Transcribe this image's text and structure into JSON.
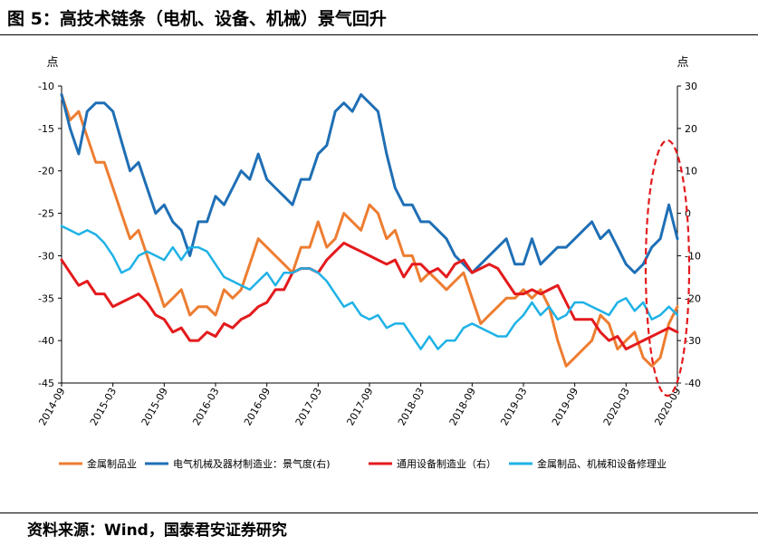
{
  "figure_title": "图 5：高技术链条（电机、设备、机械）景气回升",
  "source": "资料来源：Wind，国泰君安证券研究",
  "chart_data": {
    "type": "line",
    "y_left_unit": "点",
    "y_right_unit": "点",
    "y_left": {
      "range": [
        -45,
        -10
      ],
      "ticks": [
        -10,
        -15,
        -20,
        -25,
        -30,
        -35,
        -40,
        -45
      ]
    },
    "y_right": {
      "range": [
        -40,
        30
      ],
      "ticks": [
        30,
        20,
        10,
        0,
        -10,
        -20,
        -30,
        -40
      ]
    },
    "x_ticks": [
      "2014-09",
      "2015-03",
      "2015-09",
      "2016-03",
      "2016-09",
      "2017-03",
      "2017-09",
      "2018-03",
      "2018-09",
      "2019-03",
      "2019-09",
      "2020-03",
      "2020-09"
    ],
    "x_range": [
      0,
      72
    ],
    "grid": false,
    "legend_position": "bottom",
    "annotation": "red dashed ellipse highlighting the most recent months (2020-06 to 2020-09)",
    "series": [
      {
        "name": "金属制品业",
        "axis": "left",
        "color": "#ED7D31",
        "x": [
          0,
          1,
          2,
          3,
          4,
          5,
          6,
          7,
          8,
          9,
          10,
          11,
          12,
          13,
          14,
          15,
          16,
          17,
          18,
          19,
          20,
          21,
          22,
          23,
          24,
          25,
          26,
          27,
          28,
          29,
          30,
          31,
          32,
          33,
          34,
          35,
          36,
          37,
          38,
          39,
          40,
          41,
          42,
          43,
          44,
          45,
          46,
          47,
          48,
          49,
          50,
          51,
          52,
          53,
          54,
          55,
          56,
          57,
          58,
          59,
          60,
          61,
          62,
          63,
          64,
          65,
          66,
          67,
          68,
          69,
          70,
          71,
          72
        ],
        "values": [
          -11,
          -14,
          -13,
          -16,
          -19,
          -19,
          -22,
          -25,
          -28,
          -27,
          -30,
          -33,
          -36,
          -35,
          -34,
          -37,
          -36,
          -36,
          -37,
          -34,
          -35,
          -34,
          -31,
          -28,
          -29,
          -30,
          -31,
          -32,
          -29,
          -29,
          -26,
          -29,
          -28,
          -25,
          -26,
          -27,
          -24,
          -25,
          -28,
          -27,
          -30,
          -30,
          -33,
          -32,
          -33,
          -34,
          -33,
          -32,
          -35,
          -38,
          -37,
          -36,
          -35,
          -35,
          -34,
          -35,
          -34,
          -36,
          -40,
          -43,
          -42,
          -41,
          -40,
          -37,
          -38,
          -41,
          -40,
          -39,
          -42,
          -43,
          -42,
          -38,
          -36
        ]
      },
      {
        "name": "电气机械及器材制造业：景气度(右)",
        "axis": "right",
        "color": "#1F6FB5",
        "x": [
          0,
          1,
          2,
          3,
          4,
          5,
          6,
          7,
          8,
          9,
          10,
          11,
          12,
          13,
          14,
          15,
          16,
          17,
          18,
          19,
          20,
          21,
          22,
          23,
          24,
          25,
          26,
          27,
          28,
          29,
          30,
          31,
          32,
          33,
          34,
          35,
          36,
          37,
          38,
          39,
          40,
          41,
          42,
          43,
          44,
          45,
          46,
          47,
          48,
          49,
          50,
          51,
          52,
          53,
          54,
          55,
          56,
          57,
          58,
          59,
          60,
          61,
          62,
          63,
          64,
          65,
          66,
          67,
          68,
          69,
          70,
          71,
          72
        ],
        "values": [
          28,
          20,
          14,
          24,
          26,
          26,
          24,
          17,
          10,
          12,
          6,
          0,
          2,
          -2,
          -4,
          -10,
          -2,
          -2,
          4,
          2,
          6,
          10,
          8,
          14,
          8,
          6,
          4,
          2,
          8,
          8,
          14,
          16,
          24,
          26,
          24,
          28,
          26,
          24,
          14,
          6,
          2,
          2,
          -2,
          -2,
          -4,
          -6,
          -10,
          -12,
          -14,
          -12,
          -10,
          -8,
          -6,
          -12,
          -12,
          -6,
          -12,
          -10,
          -8,
          -8,
          -6,
          -4,
          -2,
          -6,
          -4,
          -8,
          -12,
          -14,
          -12,
          -8,
          -6,
          2,
          -6
        ]
      },
      {
        "name": "通用设备制造业（右）",
        "axis": "right",
        "color": "#E41A1C",
        "x": [
          0,
          1,
          2,
          3,
          4,
          5,
          6,
          7,
          8,
          9,
          10,
          11,
          12,
          13,
          14,
          15,
          16,
          17,
          18,
          19,
          20,
          21,
          22,
          23,
          24,
          25,
          26,
          27,
          28,
          29,
          30,
          31,
          32,
          33,
          34,
          35,
          36,
          37,
          38,
          39,
          40,
          41,
          42,
          43,
          44,
          45,
          46,
          47,
          48,
          49,
          50,
          51,
          52,
          53,
          54,
          55,
          56,
          57,
          58,
          59,
          60,
          61,
          62,
          63,
          64,
          65,
          66,
          67,
          68,
          69,
          70,
          71,
          72
        ],
        "values": [
          -11,
          -14,
          -17,
          -16,
          -19,
          -19,
          -22,
          -21,
          -20,
          -19,
          -21,
          -24,
          -25,
          -28,
          -27,
          -30,
          -30,
          -28,
          -29,
          -26,
          -27,
          -25,
          -24,
          -22,
          -21,
          -18,
          -18,
          -14,
          -13,
          -13,
          -14,
          -11,
          -9,
          -7,
          -8,
          -9,
          -10,
          -11,
          -12,
          -11,
          -15,
          -12,
          -12,
          -14,
          -13,
          -15,
          -12,
          -11,
          -14,
          -13,
          -12,
          -13,
          -16,
          -19,
          -19,
          -18,
          -19,
          -18,
          -17,
          -21,
          -25,
          -25,
          -25,
          -28,
          -30,
          -29,
          -32,
          -31,
          -30,
          -29,
          -28,
          -27,
          -28
        ]
      },
      {
        "name": "金属制品、机械和设备修理业",
        "axis": "left",
        "color": "#1FB2E6",
        "x": [
          0,
          1,
          2,
          3,
          4,
          5,
          6,
          7,
          8,
          9,
          10,
          11,
          12,
          13,
          14,
          15,
          16,
          17,
          18,
          19,
          20,
          21,
          22,
          23,
          24,
          25,
          26,
          27,
          28,
          29,
          30,
          31,
          32,
          33,
          34,
          35,
          36,
          37,
          38,
          39,
          40,
          41,
          42,
          43,
          44,
          45,
          46,
          47,
          48,
          49,
          50,
          51,
          52,
          53,
          54,
          55,
          56,
          57,
          58,
          59,
          60,
          61,
          62,
          63,
          64,
          65,
          66,
          67,
          68,
          69,
          70,
          71,
          72
        ],
        "values": [
          -26.5,
          -27,
          -27.5,
          -27,
          -27.5,
          -28.5,
          -30,
          -32,
          -31.5,
          -30,
          -29.5,
          -30,
          -30.5,
          -29,
          -30.5,
          -29,
          -29,
          -29.5,
          -31,
          -32.5,
          -33,
          -33.5,
          -34,
          -33,
          -32,
          -33.5,
          -32,
          -32,
          -31.5,
          -31.5,
          -32,
          -33,
          -34.5,
          -36,
          -35.5,
          -37,
          -37.5,
          -37,
          -38.5,
          -38,
          -38,
          -39.5,
          -41,
          -39.5,
          -41,
          -40,
          -40,
          -38.5,
          -38,
          -38.5,
          -39,
          -39.5,
          -39.5,
          -38,
          -37,
          -35.5,
          -37,
          -36,
          -37.5,
          -37,
          -35.5,
          -35.5,
          -36,
          -36.5,
          -37,
          -35.5,
          -35,
          -36.5,
          -35.5,
          -37.5,
          -37,
          -36,
          -37
        ]
      }
    ]
  }
}
